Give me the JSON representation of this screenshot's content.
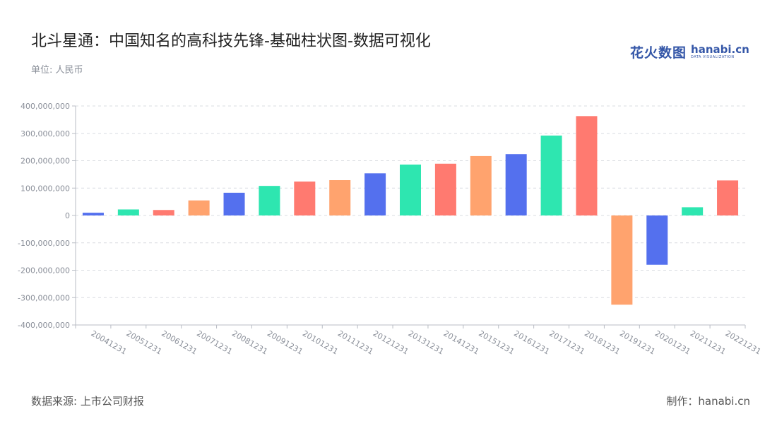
{
  "header": {
    "title": "北斗星通：中国知名的高科技先锋-基础柱状图-数据可视化",
    "unit": "单位: 人民币"
  },
  "logo": {
    "cn": "花火数图",
    "en": "hanabi.cn",
    "sub": "DATA VISUALIZATION",
    "color": "#3557a8"
  },
  "footer": {
    "source": "数据来源: 上市公司财报",
    "credit": "制作：hanabi.cn"
  },
  "chart_data": {
    "type": "bar",
    "categories": [
      "20041231",
      "20051231",
      "20061231",
      "20071231",
      "20081231",
      "20091231",
      "20101231",
      "20111231",
      "20121231",
      "20131231",
      "20141231",
      "20151231",
      "20161231",
      "20171231",
      "20181231",
      "20191231",
      "20201231",
      "20211231",
      "20221231"
    ],
    "values": [
      10000000,
      22000000,
      20000000,
      55000000,
      83000000,
      108000000,
      124000000,
      129000000,
      154000000,
      186000000,
      189000000,
      217000000,
      224000000,
      292000000,
      363000000,
      -326000000,
      -180000000,
      30000000,
      128000000
    ],
    "colors": [
      "#5470ee",
      "#2ee6b0",
      "#ff7a70",
      "#ffa36e",
      "#5470ee",
      "#2ee6b0",
      "#ff7a70",
      "#ffa36e",
      "#5470ee",
      "#2ee6b0",
      "#ff7a70",
      "#ffa36e",
      "#5470ee",
      "#2ee6b0",
      "#ff7a70",
      "#ffa36e",
      "#5470ee",
      "#2ee6b0",
      "#ff7a70"
    ],
    "y_ticks": [
      "400,000,000",
      "300,000,000",
      "200,000,000",
      "100,000,000",
      "0",
      "-100,000,000",
      "-200,000,000",
      "-300,000,000",
      "-400,000,000"
    ],
    "ylim": [
      -400000000,
      400000000
    ],
    "grid": true,
    "title": "",
    "xlabel": "",
    "ylabel": ""
  }
}
